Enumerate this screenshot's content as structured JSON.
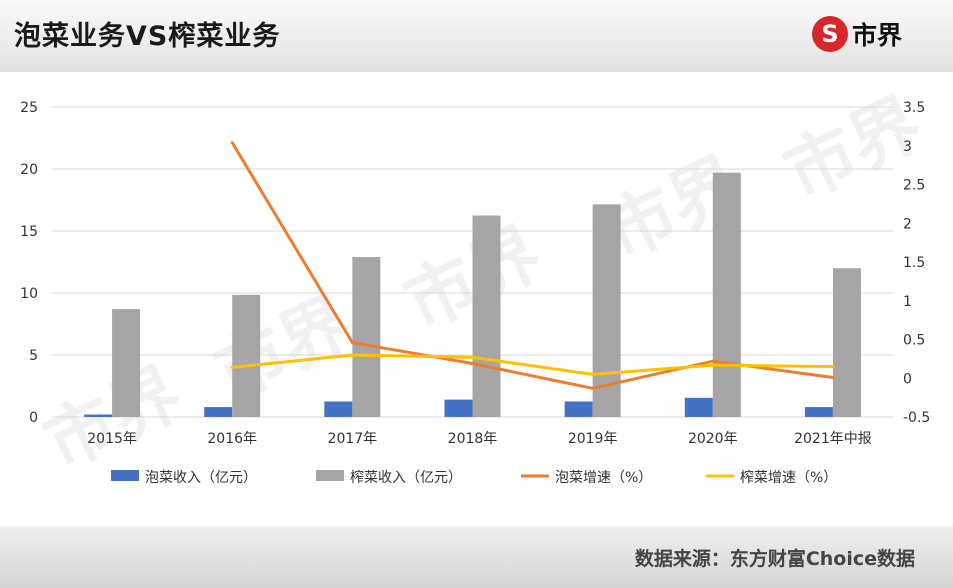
{
  "header": {
    "title": "泡菜业务VS榨菜业务",
    "logo_mark": "S",
    "logo_text": "市界"
  },
  "footer": {
    "source": "数据来源：东方财富Choice数据"
  },
  "watermark": "市界",
  "colors": {
    "paocai_income": "#4472c4",
    "zhacai_income": "#a5a5a5",
    "paocai_growth": "#ed7d31",
    "zhacai_growth": "#ffc000"
  },
  "chart_data": {
    "type": "bar+line",
    "categories": [
      "2015年",
      "2016年",
      "2017年",
      "2018年",
      "2019年",
      "2020年",
      "2021年中报"
    ],
    "left_axis": {
      "ylim": [
        0,
        25
      ],
      "ticks": [
        0,
        5,
        10,
        15,
        20,
        25
      ]
    },
    "right_axis": {
      "ylim": [
        -0.5,
        3.5
      ],
      "ticks": [
        -0.5,
        0,
        0.5,
        1,
        1.5,
        2,
        2.5,
        3,
        3.5
      ]
    },
    "grid": true,
    "legend_position": "bottom",
    "series": [
      {
        "name": "泡菜收入（亿元）",
        "type": "bar",
        "axis": "left",
        "values": [
          0.2,
          0.8,
          1.25,
          1.4,
          1.25,
          1.55,
          0.8
        ]
      },
      {
        "name": "榨菜收入（亿元）",
        "type": "bar",
        "axis": "left",
        "values": [
          8.7,
          9.85,
          12.9,
          16.25,
          17.15,
          19.7,
          12.0
        ]
      },
      {
        "name": "泡菜增速（%）",
        "type": "line",
        "axis": "right",
        "values": [
          null,
          3.04,
          0.46,
          0.19,
          -0.13,
          0.22,
          0.01
        ]
      },
      {
        "name": "榨菜增速（%）",
        "type": "line",
        "axis": "right",
        "values": [
          null,
          0.14,
          0.3,
          0.27,
          0.05,
          0.17,
          0.15
        ]
      }
    ]
  }
}
